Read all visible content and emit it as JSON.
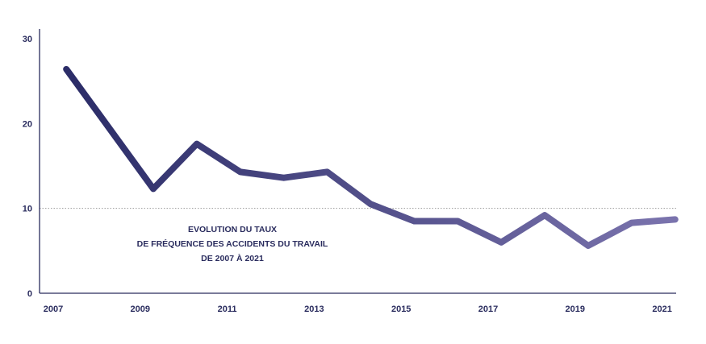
{
  "chart_data": {
    "type": "line",
    "title_lines": [
      "EVOLUTION DU TAUX",
      "DE FRÉQUENCE DES ACCIDENTS DU TRAVAIL",
      "DE 2007 À 2021"
    ],
    "x": [
      2007.3,
      2009.3,
      2010.3,
      2011.3,
      2012.3,
      2013.3,
      2014.3,
      2015.3,
      2016.3,
      2017.3,
      2018.3,
      2019.3,
      2020.3,
      2021.3
    ],
    "series": [
      {
        "values": [
          26.4,
          12.3,
          17.6,
          14.3,
          13.6,
          14.3,
          10.5,
          8.5,
          8.5,
          6.0,
          9.2,
          5.6,
          8.3,
          8.7
        ]
      }
    ],
    "x_ticks": [
      "2007",
      "2009",
      "2011",
      "2013",
      "2015",
      "2017",
      "2019",
      "2021"
    ],
    "y_ticks": [
      "0",
      "10",
      "20",
      "30"
    ],
    "ylim": [
      0,
      30
    ],
    "grid": "dotted line at 10",
    "colors": {
      "line_start": "#2c2d68",
      "line_end": "#7a73ad",
      "axis": "#2a2c5e",
      "grid": "#9a9a9a"
    }
  }
}
